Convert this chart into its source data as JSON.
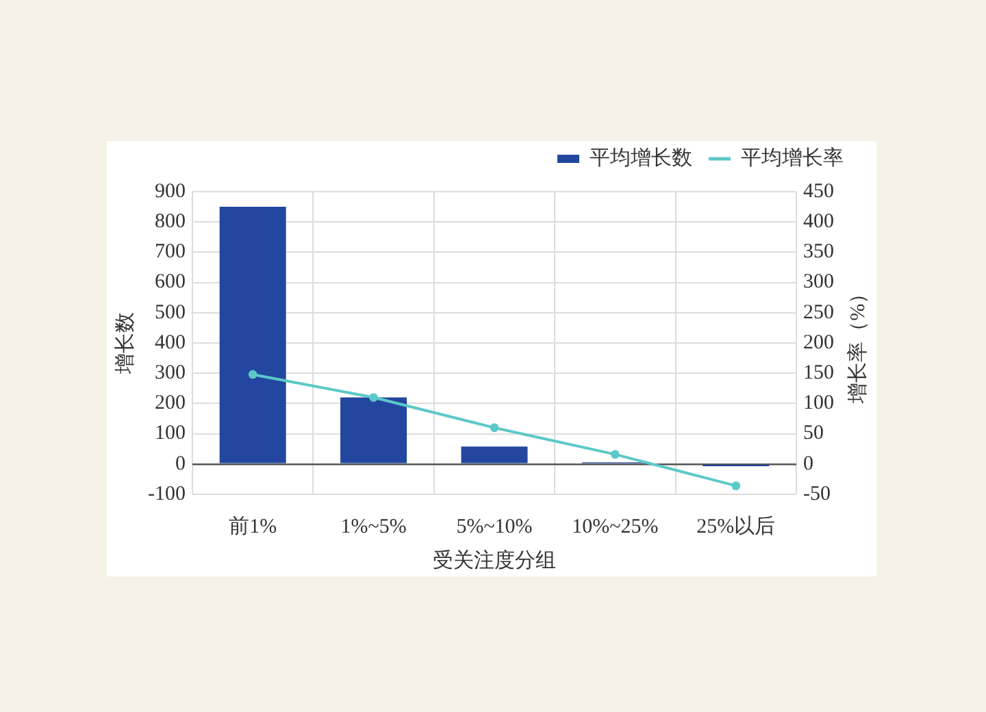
{
  "chart_data": {
    "type": "bar",
    "categories": [
      "前1%",
      "1%~5%",
      "5%~10%",
      "10%~25%",
      "25%以后"
    ],
    "series": [
      {
        "name": "平均增长数",
        "color": "#2347a0",
        "values": [
          850,
          220,
          58,
          6,
          -7
        ]
      },
      {
        "name": "平均增长率",
        "type": "line",
        "axis": "y2",
        "color": "#5cc8c8",
        "values": [
          148,
          110,
          60,
          16,
          -36
        ]
      }
    ],
    "xlabel": "受关注度分组",
    "ylabel": "增长数",
    "y2label": "增长率（%）",
    "ylim": [
      -100,
      900
    ],
    "yticks": [
      -100,
      0,
      100,
      200,
      300,
      400,
      500,
      600,
      700,
      800,
      900
    ],
    "y2lim": [
      -50,
      450
    ],
    "y2ticks": [
      -50,
      0,
      50,
      100,
      150,
      200,
      250,
      300,
      350,
      400,
      450
    ],
    "grid": true,
    "legend": "top right",
    "marker": "circle",
    "line_style": "solid"
  }
}
